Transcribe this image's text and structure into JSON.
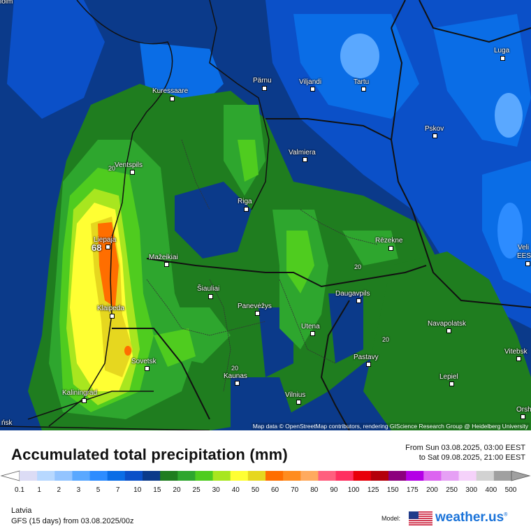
{
  "map": {
    "attribution": "Map data © OpenStreetMap contributors, rendering GIScience Research Group @ Heidelberg University",
    "edge_labels": [
      "iolm",
      "ńsk"
    ],
    "contour_labels": [
      "20",
      "20",
      "20",
      "20"
    ],
    "cities": [
      {
        "name": "Kuressaare",
        "icon": "city-marker"
      },
      {
        "name": "Pärnu",
        "icon": "city-marker"
      },
      {
        "name": "Viljandi",
        "icon": "city-marker"
      },
      {
        "name": "Tartu",
        "icon": "city-marker"
      },
      {
        "name": "Luga",
        "icon": "city-marker"
      },
      {
        "name": "Pskov",
        "icon": "city-marker"
      },
      {
        "name": "Valmiera",
        "icon": "city-marker"
      },
      {
        "name": "Ventspils",
        "icon": "city-marker"
      },
      {
        "name": "Riga",
        "icon": "city-marker"
      },
      {
        "name": "Rēzekne",
        "icon": "city-marker"
      },
      {
        "name": "Liepaja",
        "icon": "city-marker"
      },
      {
        "name": "Mažeikiai",
        "icon": "city-marker"
      },
      {
        "name": "Šiauliai",
        "icon": "city-marker"
      },
      {
        "name": "Panevėžys",
        "icon": "city-marker"
      },
      {
        "name": "Daugavpils",
        "icon": "city-marker"
      },
      {
        "name": "Klaipeda",
        "icon": "city-marker"
      },
      {
        "name": "Utena",
        "icon": "city-marker"
      },
      {
        "name": "Navapolatsk",
        "icon": "city-marker"
      },
      {
        "name": "Vitebsk",
        "icon": "city-marker"
      },
      {
        "name": "Sovetsk",
        "icon": "city-marker"
      },
      {
        "name": "Pastavy",
        "icon": "city-marker"
      },
      {
        "name": "Kaunas",
        "icon": "city-marker"
      },
      {
        "name": "Lepiel",
        "icon": "city-marker"
      },
      {
        "name": "Kaliningrad",
        "icon": "city-marker"
      },
      {
        "name": "Vilnius",
        "icon": "city-marker"
      },
      {
        "name": "Orsh",
        "icon": "city-marker"
      },
      {
        "name": "Veli",
        "icon": "city-marker"
      },
      {
        "name": "EEST",
        "icon": "city-marker"
      }
    ],
    "max_marker": "68"
  },
  "footer": {
    "title": "Accumulated total precipitation (mm)",
    "period_from": "From Sun 03.08.2025, 03:00 EEST",
    "period_to": "to Sat 09.08.2025, 21:00 EEST",
    "region": "Latvia",
    "model_run": "GFS (15 days) from  03.08.2025/00z",
    "model_label": "Model:",
    "brand": "weather.us",
    "brand_sup": "®"
  },
  "legend": {
    "ticks": [
      "0.1",
      "1",
      "2",
      "3",
      "5",
      "7",
      "10",
      "15",
      "20",
      "25",
      "30",
      "40",
      "50",
      "60",
      "70",
      "80",
      "90",
      "100",
      "125",
      "150",
      "175",
      "200",
      "250",
      "300",
      "400",
      "500"
    ],
    "colors": [
      "#dcdcf5",
      "#b7d8ff",
      "#93c4ff",
      "#5aa8ff",
      "#2d8cff",
      "#0a6de6",
      "#0b50c8",
      "#0b3a8a",
      "#1f7d1f",
      "#2ea62e",
      "#4fcc1f",
      "#a8e61f",
      "#ffff33",
      "#e6d71f",
      "#ff6e00",
      "#ff8c1f",
      "#ffaa5f",
      "#ff5f7e",
      "#ff3060",
      "#e8000a",
      "#b4000a",
      "#8c007d",
      "#b400e6",
      "#dc64f0",
      "#e6a0f5",
      "#f5d2fa",
      "#d2d2d2",
      "#a0a0a0"
    ]
  }
}
